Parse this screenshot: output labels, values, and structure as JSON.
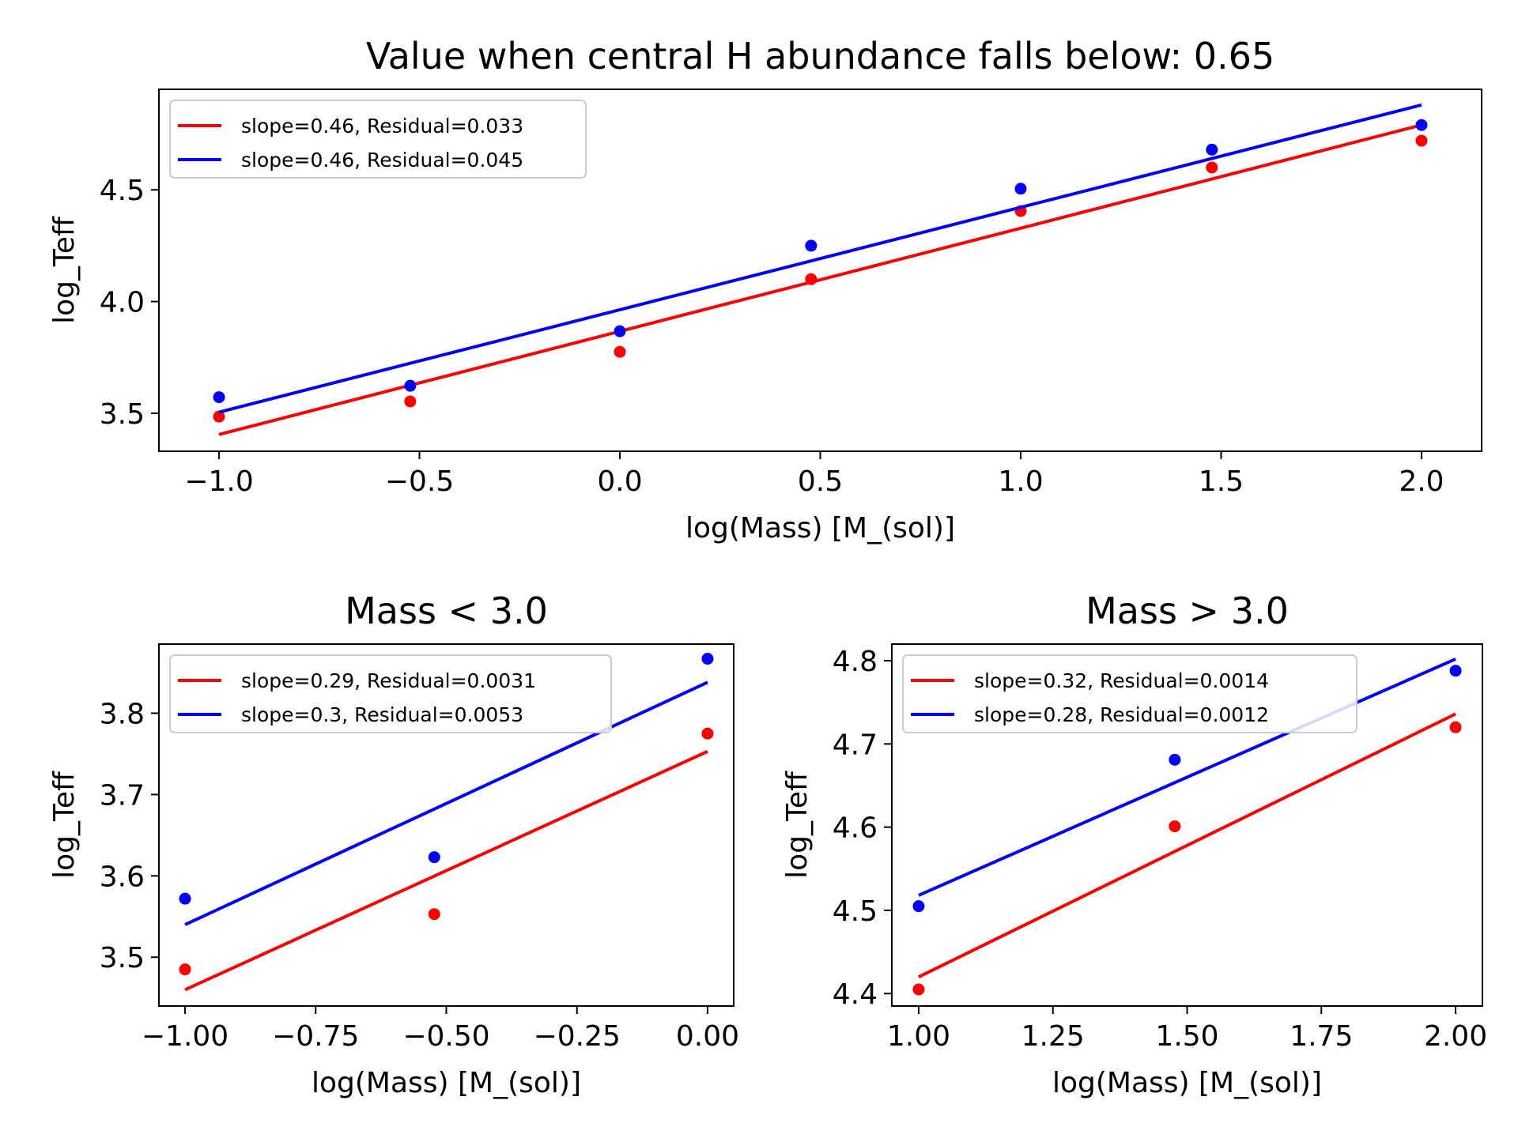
{
  "chart_data": [
    {
      "type": "scatter",
      "title": "Value when central H abundance falls below: 0.65",
      "xlabel": "log(Mass) [M_(sol)]",
      "ylabel": "log_Teff",
      "xlim": [
        -1.15,
        2.15
      ],
      "ylim": [
        3.33,
        4.95
      ],
      "xticks": [
        -1.0,
        -0.5,
        0.0,
        0.5,
        1.0,
        1.5,
        2.0
      ],
      "xtick_labels": [
        "−1.0",
        "−0.5",
        "0.0",
        "0.5",
        "1.0",
        "1.5",
        "2.0"
      ],
      "yticks": [
        3.5,
        4.0,
        4.5
      ],
      "ytick_labels": [
        "3.5",
        "4.0",
        "4.5"
      ],
      "legend_position": "upper-left",
      "grid": false,
      "series": [
        {
          "name": "slope=0.46, Residual=0.033",
          "color": "#ff0000",
          "points": [
            [
              -1.0,
              3.485
            ],
            [
              -0.523,
              3.553
            ],
            [
              0.0,
              3.775
            ],
            [
              0.477,
              4.1
            ],
            [
              1.0,
              4.405
            ],
            [
              1.477,
              4.6
            ],
            [
              2.0,
              4.72
            ]
          ],
          "line": [
            [
              -1.0,
              3.405
            ],
            [
              2.0,
              4.79
            ]
          ]
        },
        {
          "name": "slope=0.46, Residual=0.045",
          "color": "#0000ff",
          "points": [
            [
              -1.0,
              3.572
            ],
            [
              -0.523,
              3.623
            ],
            [
              0.0,
              3.867
            ],
            [
              0.477,
              4.25
            ],
            [
              1.0,
              4.505
            ],
            [
              1.477,
              4.68
            ],
            [
              2.0,
              4.79
            ]
          ],
          "line": [
            [
              -1.0,
              3.505
            ],
            [
              2.0,
              4.88
            ]
          ]
        }
      ]
    },
    {
      "type": "scatter",
      "title": "Mass < 3.0",
      "xlabel": "log(Mass) [M_(sol)]",
      "ylabel": "log_Teff",
      "xlim": [
        -1.05,
        0.05
      ],
      "ylim": [
        3.44,
        3.885
      ],
      "xticks": [
        -1.0,
        -0.75,
        -0.5,
        -0.25,
        0.0
      ],
      "xtick_labels": [
        "−1.00",
        "−0.75",
        "−0.50",
        "−0.25",
        "0.00"
      ],
      "yticks": [
        3.5,
        3.6,
        3.7,
        3.8
      ],
      "ytick_labels": [
        "3.5",
        "3.6",
        "3.7",
        "3.8"
      ],
      "legend_position": "upper-left",
      "grid": false,
      "series": [
        {
          "name": "slope=0.29, Residual=0.0031",
          "color": "#ff0000",
          "points": [
            [
              -1.0,
              3.485
            ],
            [
              -0.523,
              3.553
            ],
            [
              0.0,
              3.775
            ]
          ],
          "line": [
            [
              -1.0,
              3.46
            ],
            [
              0.0,
              3.753
            ]
          ]
        },
        {
          "name": "slope=0.3, Residual=0.0053",
          "color": "#0000ff",
          "points": [
            [
              -1.0,
              3.572
            ],
            [
              -0.523,
              3.623
            ],
            [
              0.0,
              3.867
            ]
          ],
          "line": [
            [
              -1.0,
              3.54
            ],
            [
              0.0,
              3.838
            ]
          ]
        }
      ]
    },
    {
      "type": "scatter",
      "title": "Mass > 3.0",
      "xlabel": "log(Mass) [M_(sol)]",
      "ylabel": "log_Teff",
      "xlim": [
        0.95,
        2.05
      ],
      "ylim": [
        4.385,
        4.82
      ],
      "xticks": [
        1.0,
        1.25,
        1.5,
        1.75,
        2.0
      ],
      "xtick_labels": [
        "1.00",
        "1.25",
        "1.50",
        "1.75",
        "2.00"
      ],
      "yticks": [
        4.4,
        4.5,
        4.6,
        4.7,
        4.8
      ],
      "ytick_labels": [
        "4.4",
        "4.5",
        "4.6",
        "4.7",
        "4.8"
      ],
      "legend_position": "upper-left",
      "grid": false,
      "series": [
        {
          "name": "slope=0.32, Residual=0.0014",
          "color": "#ff0000",
          "points": [
            [
              1.0,
              4.405
            ],
            [
              1.477,
              4.601
            ],
            [
              2.0,
              4.72
            ]
          ],
          "line": [
            [
              1.0,
              4.42
            ],
            [
              2.0,
              4.736
            ]
          ]
        },
        {
          "name": "slope=0.28, Residual=0.0012",
          "color": "#0000ff",
          "points": [
            [
              1.0,
              4.505
            ],
            [
              1.477,
              4.681
            ],
            [
              2.0,
              4.788
            ]
          ],
          "line": [
            [
              1.0,
              4.518
            ],
            [
              2.0,
              4.802
            ]
          ]
        }
      ]
    }
  ]
}
